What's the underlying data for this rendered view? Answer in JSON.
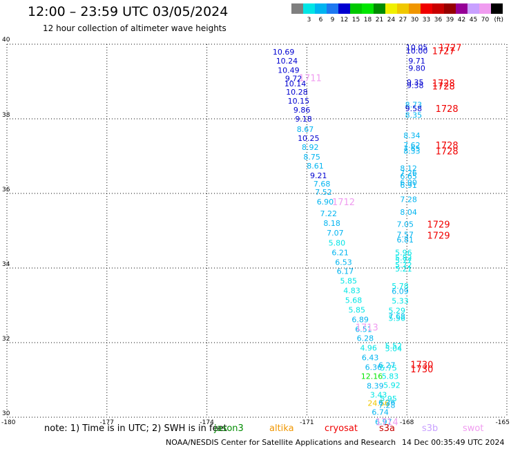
{
  "header": {
    "title": "12:00 – 23:59 UTC 03/05/2024",
    "subtitle": "12 hour collection of altimeter wave heights"
  },
  "colorbar": {
    "unit": "(ft)",
    "swatches": [
      {
        "label": "",
        "color": "#7f7f7f"
      },
      {
        "label": "3",
        "color": "#00e5e5"
      },
      {
        "label": "6",
        "color": "#00b4f0"
      },
      {
        "label": "9",
        "color": "#1e78f0"
      },
      {
        "label": "12",
        "color": "#0000d0"
      },
      {
        "label": "15",
        "color": "#00c800"
      },
      {
        "label": "18",
        "color": "#00e600"
      },
      {
        "label": "21",
        "color": "#008c00"
      },
      {
        "label": "24",
        "color": "#f0f000"
      },
      {
        "label": "27",
        "color": "#f0c800"
      },
      {
        "label": "30",
        "color": "#f09600"
      },
      {
        "label": "33",
        "color": "#f00000"
      },
      {
        "label": "36",
        "color": "#c80000"
      },
      {
        "label": "39",
        "color": "#960000"
      },
      {
        "label": "42",
        "color": "#960096"
      },
      {
        "label": "45",
        "color": "#c8a0ff"
      },
      {
        "label": "70",
        "color": "#f09cf0"
      },
      {
        "label": "",
        "color": "#000000"
      }
    ]
  },
  "chart_data": {
    "type": "scatter",
    "xlim": [
      -180,
      -165
    ],
    "ylim": [
      30,
      40
    ],
    "x_ticks": [
      "-180",
      "-177",
      "-174",
      "-171",
      "-168",
      "-165"
    ],
    "y_ticks": [
      "30",
      "32",
      "34",
      "36",
      "38",
      "40"
    ],
    "grid": true,
    "points": [
      {
        "x": -171.7,
        "y": 39.8,
        "text": "10.69",
        "color": "#0000d0"
      },
      {
        "x": -171.6,
        "y": 39.56,
        "text": "10.24",
        "color": "#0000d0"
      },
      {
        "x": -171.55,
        "y": 39.31,
        "text": "10.49",
        "color": "#0000d0"
      },
      {
        "x": -171.4,
        "y": 39.08,
        "text": "9.72",
        "color": "#0000d0"
      },
      {
        "x": -171.35,
        "y": 38.94,
        "text": "10.14",
        "color": "#0000d0"
      },
      {
        "x": -171.3,
        "y": 38.72,
        "text": "10.28",
        "color": "#0000d0"
      },
      {
        "x": -171.25,
        "y": 38.48,
        "text": "10.15",
        "color": "#0000d0"
      },
      {
        "x": -171.15,
        "y": 38.24,
        "text": "9.86",
        "color": "#0000d0"
      },
      {
        "x": -171.1,
        "y": 38.0,
        "text": "9.18",
        "color": "#0000d0"
      },
      {
        "x": -171.05,
        "y": 37.72,
        "text": "8.67",
        "color": "#00b4f0"
      },
      {
        "x": -170.95,
        "y": 37.48,
        "text": "10.25",
        "color": "#0000d0"
      },
      {
        "x": -170.9,
        "y": 37.24,
        "text": "8.92",
        "color": "#00b4f0"
      },
      {
        "x": -170.85,
        "y": 36.98,
        "text": "8.75",
        "color": "#00b4f0"
      },
      {
        "x": -170.75,
        "y": 36.74,
        "text": "8.61",
        "color": "#00b4f0"
      },
      {
        "x": -170.65,
        "y": 36.48,
        "text": "9.21",
        "color": "#0000d0"
      },
      {
        "x": -170.55,
        "y": 36.26,
        "text": "7.68",
        "color": "#00b4f0"
      },
      {
        "x": -170.5,
        "y": 36.04,
        "text": "7.52",
        "color": "#00b4f0"
      },
      {
        "x": -170.45,
        "y": 35.78,
        "text": "6.90",
        "color": "#00b4f0"
      },
      {
        "x": -170.35,
        "y": 35.46,
        "text": "7.22",
        "color": "#00b4f0"
      },
      {
        "x": -170.25,
        "y": 35.2,
        "text": "8.18",
        "color": "#00b4f0"
      },
      {
        "x": -170.15,
        "y": 34.94,
        "text": "7.07",
        "color": "#00b4f0"
      },
      {
        "x": -170.1,
        "y": 34.68,
        "text": "5.80",
        "color": "#00e5e5"
      },
      {
        "x": -170.0,
        "y": 34.42,
        "text": "6.21",
        "color": "#00b4f0"
      },
      {
        "x": -169.9,
        "y": 34.16,
        "text": "6.53",
        "color": "#00b4f0"
      },
      {
        "x": -169.85,
        "y": 33.92,
        "text": "6.17",
        "color": "#00b4f0"
      },
      {
        "x": -169.75,
        "y": 33.66,
        "text": "5.85",
        "color": "#00e5e5"
      },
      {
        "x": -169.65,
        "y": 33.4,
        "text": "4.83",
        "color": "#00e5e5"
      },
      {
        "x": -169.6,
        "y": 33.14,
        "text": "5.68",
        "color": "#00e5e5"
      },
      {
        "x": -169.5,
        "y": 32.88,
        "text": "5.85",
        "color": "#00e5e5"
      },
      {
        "x": -169.4,
        "y": 32.62,
        "text": "6.89",
        "color": "#00b4f0"
      },
      {
        "x": -169.3,
        "y": 32.36,
        "text": "6.51",
        "color": "#00b4f0"
      },
      {
        "x": -169.25,
        "y": 32.12,
        "text": "6.28",
        "color": "#00b4f0"
      },
      {
        "x": -169.15,
        "y": 31.86,
        "text": "4.96",
        "color": "#00e5e5"
      },
      {
        "x": -169.1,
        "y": 31.6,
        "text": "6.43",
        "color": "#00b4f0"
      },
      {
        "x": -169.0,
        "y": 31.34,
        "text": "6.36",
        "color": "#00b4f0"
      },
      {
        "x": -169.05,
        "y": 31.1,
        "text": "12.16",
        "color": "#00e600"
      },
      {
        "x": -168.95,
        "y": 30.84,
        "text": "8.39",
        "color": "#00b4f0"
      },
      {
        "x": -168.85,
        "y": 30.6,
        "text": "3.43",
        "color": "#00e5e5"
      },
      {
        "x": -168.85,
        "y": 30.38,
        "text": "24.56",
        "color": "#f0c800"
      },
      {
        "x": -168.8,
        "y": 30.14,
        "text": "6.74",
        "color": "#00b4f0"
      },
      {
        "x": -168.7,
        "y": 29.88,
        "text": "6.97",
        "color": "#00b4f0"
      },
      {
        "x": -168.6,
        "y": 31.4,
        "text": "6.27",
        "color": "#00b4f0"
      },
      {
        "x": -168.55,
        "y": 31.32,
        "text": "5.75",
        "color": "#00e5e5"
      },
      {
        "x": -168.5,
        "y": 31.1,
        "text": "5.83",
        "color": "#00e5e5"
      },
      {
        "x": -168.45,
        "y": 30.86,
        "text": "5.92",
        "color": "#00e5e5"
      },
      {
        "x": -168.55,
        "y": 30.5,
        "text": "5.95",
        "color": "#00e5e5"
      },
      {
        "x": -168.6,
        "y": 30.4,
        "text": "6.26",
        "color": "#00b4f0"
      },
      {
        "x": -168.6,
        "y": 30.32,
        "text": "7.28",
        "color": "#00b4f0"
      },
      {
        "x": -168.4,
        "y": 31.92,
        "text": "5.52",
        "color": "#00e5e5"
      },
      {
        "x": -168.4,
        "y": 31.84,
        "text": "5.04",
        "color": "#00e5e5"
      },
      {
        "x": -168.3,
        "y": 32.86,
        "text": "5.29",
        "color": "#00e5e5"
      },
      {
        "x": -168.3,
        "y": 32.7,
        "text": "7.68",
        "color": "#00b4f0"
      },
      {
        "x": -168.3,
        "y": 32.66,
        "text": "5.56",
        "color": "#00e5e5"
      },
      {
        "x": -168.2,
        "y": 33.52,
        "text": "5.78",
        "color": "#00e5e5"
      },
      {
        "x": -168.2,
        "y": 33.38,
        "text": "6.09",
        "color": "#00b4f0"
      },
      {
        "x": -168.2,
        "y": 33.12,
        "text": "5.33",
        "color": "#00e5e5"
      },
      {
        "x": -168.1,
        "y": 34.42,
        "text": "5.96",
        "color": "#00e5e5"
      },
      {
        "x": -168.1,
        "y": 34.28,
        "text": "5.82",
        "color": "#00e5e5"
      },
      {
        "x": -168.1,
        "y": 34.2,
        "text": "5.77",
        "color": "#00e5e5"
      },
      {
        "x": -168.1,
        "y": 34.08,
        "text": "5.72",
        "color": "#00e5e5"
      },
      {
        "x": -168.1,
        "y": 33.98,
        "text": "5.21",
        "color": "#00e5e5"
      },
      {
        "x": -168.05,
        "y": 34.9,
        "text": "7.57",
        "color": "#00b4f0"
      },
      {
        "x": -168.05,
        "y": 34.76,
        "text": "6.81",
        "color": "#00b4f0"
      },
      {
        "x": -168.05,
        "y": 35.18,
        "text": "7.05",
        "color": "#00b4f0"
      },
      {
        "x": -167.95,
        "y": 35.5,
        "text": "8.04",
        "color": "#00b4f0"
      },
      {
        "x": -167.95,
        "y": 35.84,
        "text": "7.28",
        "color": "#00b4f0"
      },
      {
        "x": -167.95,
        "y": 36.68,
        "text": "8.12",
        "color": "#00b4f0"
      },
      {
        "x": -167.95,
        "y": 36.56,
        "text": "7.26",
        "color": "#00b4f0"
      },
      {
        "x": -167.95,
        "y": 36.46,
        "text": "6.65",
        "color": "#00b4f0"
      },
      {
        "x": -167.95,
        "y": 36.3,
        "text": "6.90",
        "color": "#00b4f0"
      },
      {
        "x": -167.95,
        "y": 36.22,
        "text": "6.91",
        "color": "#00b4f0"
      },
      {
        "x": -167.85,
        "y": 37.3,
        "text": "7.62",
        "color": "#00b4f0"
      },
      {
        "x": -167.85,
        "y": 37.2,
        "text": "7.65",
        "color": "#00b4f0"
      },
      {
        "x": -167.85,
        "y": 37.14,
        "text": "8.33",
        "color": "#00b4f0"
      },
      {
        "x": -167.85,
        "y": 37.56,
        "text": "8.34",
        "color": "#00b4f0"
      },
      {
        "x": -167.8,
        "y": 38.38,
        "text": "8.73",
        "color": "#00b4f0"
      },
      {
        "x": -167.8,
        "y": 38.28,
        "text": "9.58",
        "color": "#0000d0"
      },
      {
        "x": -167.8,
        "y": 38.1,
        "text": "8.35",
        "color": "#00b4f0"
      },
      {
        "x": -167.75,
        "y": 38.98,
        "text": "9.35",
        "color": "#0000d0"
      },
      {
        "x": -167.75,
        "y": 38.9,
        "text": "9.38",
        "color": "#0000d0"
      },
      {
        "x": -167.7,
        "y": 39.56,
        "text": "9.71",
        "color": "#0000d0"
      },
      {
        "x": -167.7,
        "y": 39.36,
        "text": "9.80",
        "color": "#0000d0"
      },
      {
        "x": -167.7,
        "y": 39.92,
        "text": "10.05",
        "color": "#0000d0"
      },
      {
        "x": -167.7,
        "y": 39.82,
        "text": "10.00",
        "color": "#0000d0"
      }
    ],
    "track_labels": [
      {
        "x": -170.9,
        "y": 39.1,
        "text": "1711",
        "color": "#f09cf0"
      },
      {
        "x": -169.9,
        "y": 35.78,
        "text": "1712",
        "color": "#f09cf0"
      },
      {
        "x": -169.2,
        "y": 32.42,
        "text": "1713",
        "color": "#f09cf0"
      },
      {
        "x": -168.6,
        "y": 29.88,
        "text": "1714",
        "color": "#f09cf0"
      },
      {
        "x": -166.7,
        "y": 39.92,
        "text": "1727",
        "color": "#f00000"
      },
      {
        "x": -166.9,
        "y": 39.82,
        "text": "1727",
        "color": "#f00000"
      },
      {
        "x": -166.9,
        "y": 38.96,
        "text": "1728",
        "color": "#f00000"
      },
      {
        "x": -166.9,
        "y": 38.88,
        "text": "1728",
        "color": "#f00000"
      },
      {
        "x": -166.8,
        "y": 38.28,
        "text": "1728",
        "color": "#f00000"
      },
      {
        "x": -166.8,
        "y": 37.3,
        "text": "1728",
        "color": "#f00000"
      },
      {
        "x": -166.8,
        "y": 37.14,
        "text": "1728",
        "color": "#f00000"
      },
      {
        "x": -167.05,
        "y": 35.18,
        "text": "1729",
        "color": "#f00000"
      },
      {
        "x": -167.05,
        "y": 34.88,
        "text": "1729",
        "color": "#f00000"
      },
      {
        "x": -167.55,
        "y": 31.42,
        "text": "1730",
        "color": "#f00000"
      },
      {
        "x": -167.55,
        "y": 31.3,
        "text": "1730",
        "color": "#f00000"
      }
    ]
  },
  "footer": {
    "note": "note:  1) Time is in UTC; 2) SWH is in feet",
    "missions": [
      {
        "text": "jason3",
        "color": "#008c00"
      },
      {
        "text": "altika",
        "color": "#f09600"
      },
      {
        "text": "cryosat",
        "color": "#f00000"
      },
      {
        "text": "s3a",
        "color": "#c80000"
      },
      {
        "text": "s3b",
        "color": "#c8a0ff"
      },
      {
        "text": "swot",
        "color": "#f09cf0"
      }
    ],
    "credit": "NOAA/NESDIS Center for Satellite Applications and Research",
    "timestamp": "14 Dec 00:35:49 UTC 2024"
  }
}
